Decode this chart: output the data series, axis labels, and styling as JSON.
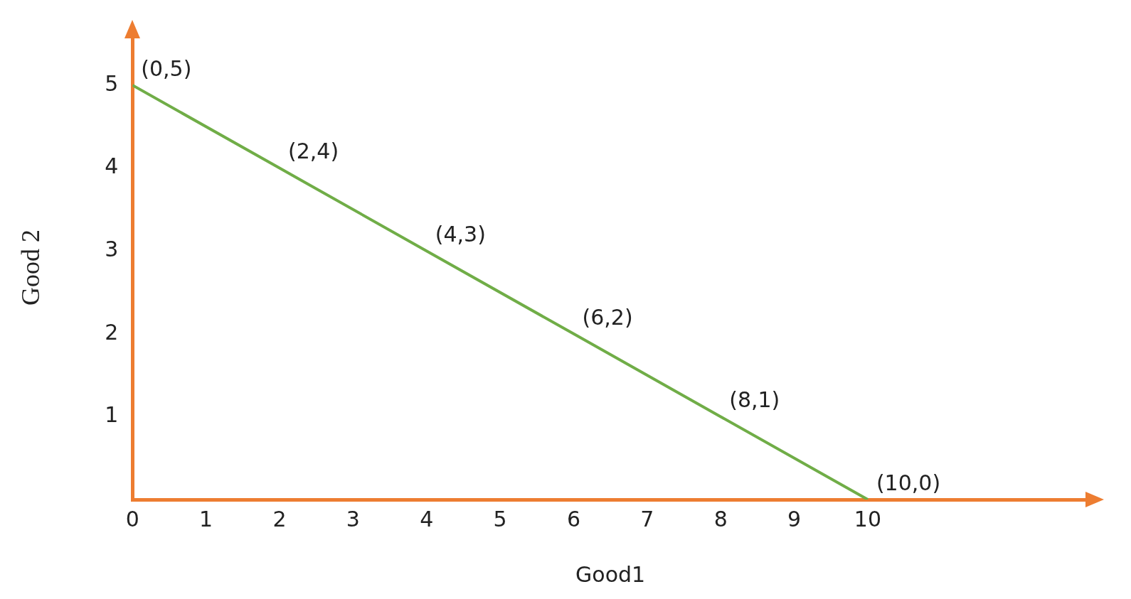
{
  "chart_data": {
    "type": "line",
    "xlabel": "Good1",
    "ylabel": "Good 2",
    "x": [
      0,
      2,
      4,
      6,
      8,
      10
    ],
    "series": [
      {
        "color": "#70ad47",
        "values": [
          5,
          4,
          3,
          2,
          1,
          0
        ]
      }
    ],
    "xlim": [
      0,
      13
    ],
    "ylim": [
      0,
      5.6
    ],
    "xticks": [
      0,
      1,
      2,
      3,
      4,
      5,
      6,
      7,
      8,
      9,
      10
    ],
    "yticks": [
      1,
      2,
      3,
      4,
      5
    ],
    "grid": false,
    "legend": false,
    "marker": "none",
    "line_style": "solid",
    "annotations": [
      {
        "text": "(0,5)",
        "x": 0,
        "y": 5
      },
      {
        "text": "(2,4)",
        "x": 2,
        "y": 4
      },
      {
        "text": "(4,3)",
        "x": 4,
        "y": 3
      },
      {
        "text": "(6,2)",
        "x": 6,
        "y": 2
      },
      {
        "text": "(8,1)",
        "x": 8,
        "y": 1
      },
      {
        "text": "(10,0)",
        "x": 10,
        "y": 0
      }
    ]
  }
}
